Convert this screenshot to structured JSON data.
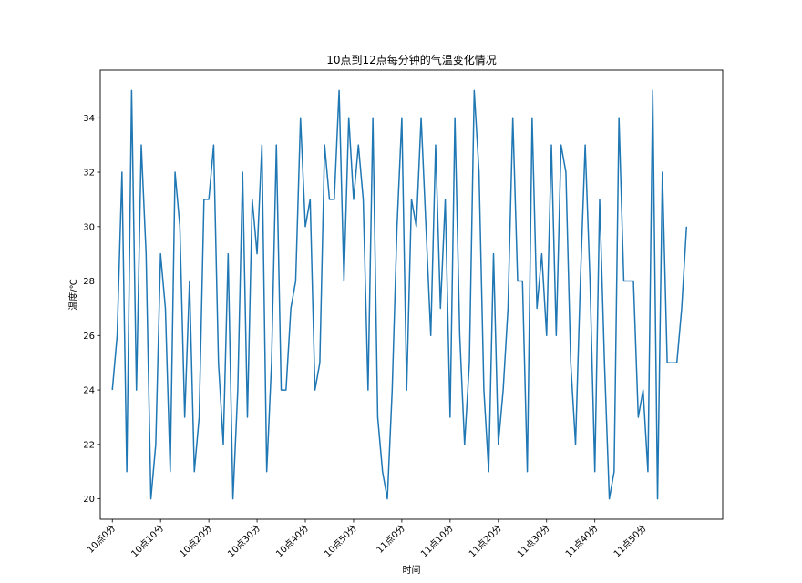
{
  "chart_data": {
    "type": "line",
    "title": "10点到12点每分钟的气温变化情况",
    "xlabel": "时间",
    "ylabel": "温度/℃",
    "xlim": [
      -2.5,
      126.5
    ],
    "ylim": [
      19.25,
      35.75
    ],
    "grid": false,
    "legend": "none",
    "line_color": "#1f77b4",
    "x_ticks": [
      0,
      10,
      20,
      30,
      40,
      50,
      60,
      70,
      80,
      90,
      100,
      110
    ],
    "x_tick_labels": [
      "10点0分",
      "10点10分",
      "10点20分",
      "10点30分",
      "10点40分",
      "10点50分",
      "11点0分",
      "11点10分",
      "11点20分",
      "11点30分",
      "11点40分",
      "11点50分"
    ],
    "y_ticks": [
      20,
      22,
      24,
      26,
      28,
      30,
      32,
      34
    ],
    "y_tick_labels": [
      "20",
      "22",
      "24",
      "26",
      "28",
      "30",
      "32",
      "34"
    ],
    "series": [
      {
        "values": [
          24,
          26,
          32,
          21,
          35,
          24,
          33,
          29,
          20,
          22,
          29,
          27,
          21,
          32,
          30,
          23,
          28,
          21,
          23,
          31,
          31,
          33,
          25,
          22,
          29,
          20,
          24,
          32,
          23,
          31,
          29,
          33,
          21,
          25,
          33,
          24,
          24,
          27,
          28,
          34,
          30,
          31,
          24,
          25,
          33,
          31,
          31,
          35,
          28,
          34,
          31,
          33,
          31,
          24,
          34,
          23,
          21,
          20,
          24,
          30,
          34,
          24,
          31,
          30,
          34,
          30,
          26,
          33,
          27,
          31,
          23,
          34,
          26,
          22,
          25,
          35,
          32,
          24,
          21,
          29,
          22,
          24,
          27,
          34,
          28,
          28,
          21,
          34,
          27,
          29,
          26,
          33,
          26,
          33,
          32,
          25,
          22,
          28,
          33,
          28,
          21,
          31,
          25,
          20,
          21,
          34,
          28,
          28,
          28,
          23,
          24,
          21,
          35,
          20,
          32,
          25,
          25,
          25,
          27,
          30
        ]
      }
    ]
  }
}
